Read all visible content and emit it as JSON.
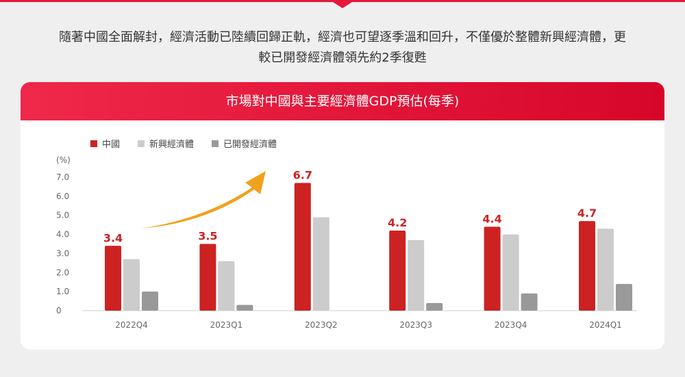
{
  "intro": {
    "line1": "隨著中國全面解封，經濟活動已陸續回歸正軌，經濟也可望逐季溫和回升，不僅優於整體新興經濟體，更",
    "line2": "較已開發經濟體領先約2季復甦"
  },
  "colors": {
    "china": "#cc2222",
    "emerging": "#cccccc",
    "developed": "#999999",
    "arrow": "#f0a21c",
    "label": "#cc2222",
    "header": "#e5183a"
  },
  "chart_data": {
    "type": "bar",
    "title": "市場對中國與主要經濟體GDP預估(每季)",
    "ylabel": "(%)",
    "ylim": [
      0,
      7
    ],
    "yticks": [
      "0",
      "1.0",
      "2.0",
      "3.0",
      "4.0",
      "5.0",
      "6.0",
      "7.0"
    ],
    "categories": [
      "2022Q4",
      "2023Q1",
      "2023Q2",
      "2023Q3",
      "2023Q4",
      "2024Q1"
    ],
    "series": [
      {
        "name": "中國",
        "values": [
          3.4,
          3.5,
          6.7,
          4.2,
          4.4,
          4.7
        ],
        "labels": [
          "3.4",
          "3.5",
          "6.7",
          "4.2",
          "4.4",
          "4.7"
        ]
      },
      {
        "name": "新興經濟體",
        "values": [
          2.7,
          2.6,
          4.9,
          3.7,
          4.0,
          4.3
        ]
      },
      {
        "name": "已開發經濟體",
        "values": [
          1.0,
          0.3,
          0.0,
          0.4,
          0.9,
          1.4
        ]
      }
    ],
    "legend_position": "top-left",
    "grid": false
  }
}
